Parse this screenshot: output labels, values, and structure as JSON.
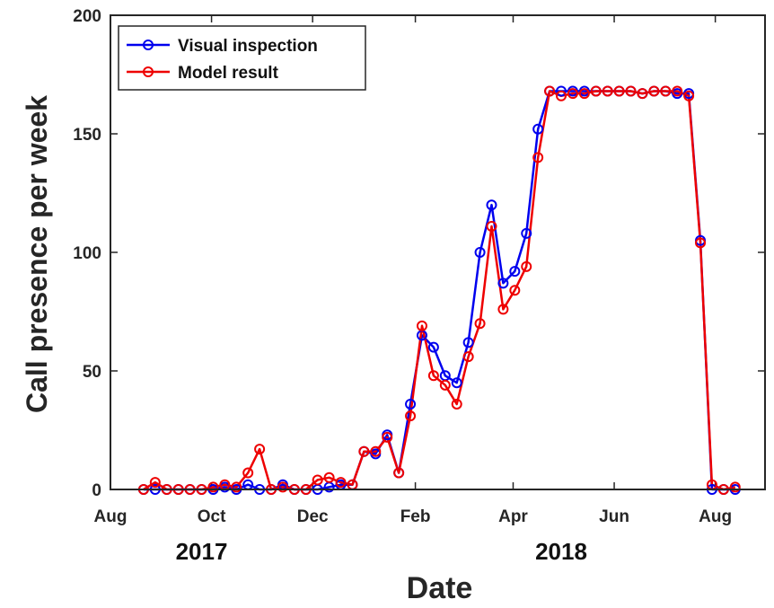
{
  "chart_data": {
    "type": "line",
    "xlabel": "Date",
    "ylabel": "Call presence per week",
    "ylim": [
      0,
      200
    ],
    "xlim": [
      "2017-08-01",
      "2018-08-31"
    ],
    "x_ticks": [
      {
        "label": "Aug",
        "date": "2017-08-01"
      },
      {
        "label": "Oct",
        "date": "2017-10-01"
      },
      {
        "label": "Dec",
        "date": "2017-12-01"
      },
      {
        "label": "Feb",
        "date": "2018-02-01"
      },
      {
        "label": "Apr",
        "date": "2018-04-01"
      },
      {
        "label": "Jun",
        "date": "2018-06-01"
      },
      {
        "label": "Aug",
        "date": "2018-08-01"
      }
    ],
    "y_ticks": [
      0,
      50,
      100,
      150,
      200
    ],
    "year_labels": [
      {
        "text": "2017",
        "date": "2017-09-25"
      },
      {
        "text": "2018",
        "date": "2018-04-30"
      }
    ],
    "grid": false,
    "legend_position": "top-left",
    "x": [
      "2017-08-21",
      "2017-08-28",
      "2017-09-04",
      "2017-09-11",
      "2017-09-18",
      "2017-09-25",
      "2017-10-02",
      "2017-10-09",
      "2017-10-16",
      "2017-10-23",
      "2017-10-30",
      "2017-11-06",
      "2017-11-13",
      "2017-11-20",
      "2017-11-27",
      "2017-12-04",
      "2017-12-11",
      "2017-12-18",
      "2017-12-25",
      "2018-01-01",
      "2018-01-08",
      "2018-01-15",
      "2018-01-22",
      "2018-01-29",
      "2018-02-05",
      "2018-02-12",
      "2018-02-19",
      "2018-02-26",
      "2018-03-05",
      "2018-03-12",
      "2018-03-19",
      "2018-03-26",
      "2018-04-02",
      "2018-04-09",
      "2018-04-16",
      "2018-04-23",
      "2018-04-30",
      "2018-05-07",
      "2018-05-14",
      "2018-05-21",
      "2018-05-28",
      "2018-06-04",
      "2018-06-11",
      "2018-06-18",
      "2018-06-25",
      "2018-07-02",
      "2018-07-09",
      "2018-07-16",
      "2018-07-23",
      "2018-07-30",
      "2018-08-06",
      "2018-08-13"
    ],
    "series": [
      {
        "name": "Visual inspection",
        "color": "#0000ee",
        "values": [
          0,
          0,
          0,
          0,
          0,
          0,
          0,
          1,
          0,
          2,
          0,
          0,
          2,
          0,
          0,
          0,
          1,
          2,
          2,
          16,
          15,
          23,
          7,
          36,
          65,
          60,
          48,
          45,
          62,
          100,
          120,
          87,
          92,
          108,
          152,
          168,
          168,
          168,
          168,
          168,
          168,
          168,
          168,
          167,
          168,
          168,
          167,
          167,
          105,
          0,
          0,
          0
        ]
      },
      {
        "name": "Model result",
        "color": "#ee0000",
        "values": [
          0,
          3,
          0,
          0,
          0,
          0,
          1,
          2,
          1,
          7,
          17,
          0,
          1,
          0,
          0,
          4,
          5,
          3,
          2,
          16,
          16,
          22,
          7,
          31,
          69,
          48,
          44,
          36,
          56,
          70,
          111,
          76,
          84,
          94,
          140,
          168,
          166,
          167,
          167,
          168,
          168,
          168,
          168,
          167,
          168,
          168,
          168,
          166,
          104,
          2,
          0,
          1
        ]
      }
    ]
  }
}
